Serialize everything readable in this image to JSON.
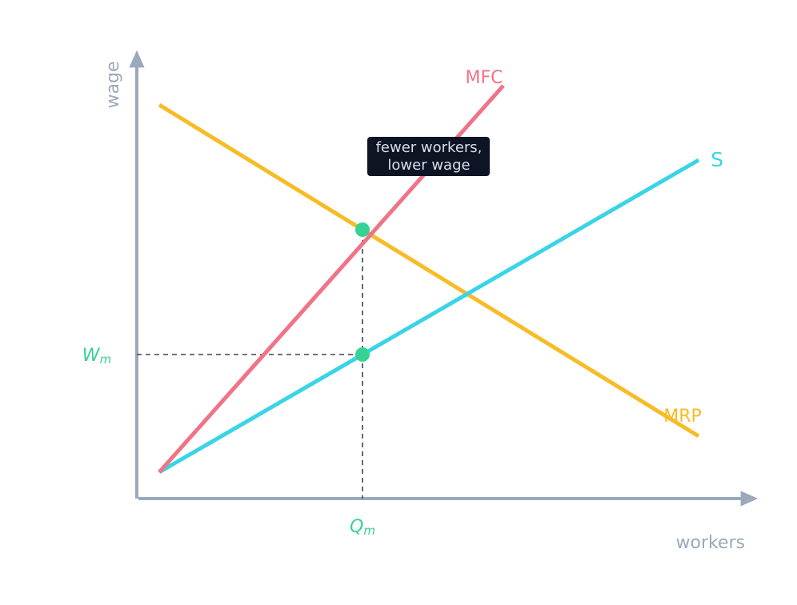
{
  "axes": {
    "xlabel": "workers",
    "ylabel": "wage",
    "axis_color": "#9aa9bb"
  },
  "curves": {
    "mfc": {
      "label": "MFC",
      "color": "#f07386"
    },
    "supply": {
      "label": "S",
      "color": "#3ad4e6"
    },
    "mrp": {
      "label": "MRP",
      "color": "#f7bc26"
    }
  },
  "markers": {
    "wage_label": {
      "base": "W",
      "sub": "m"
    },
    "quantity_label": {
      "base": "Q",
      "sub": "m"
    },
    "color": "#36d195",
    "guide_color": "#3b4351"
  },
  "annotation": {
    "line1": "fewer workers,",
    "line2": "lower wage",
    "bg": "#0d1423",
    "fg": "#d7deea"
  }
}
